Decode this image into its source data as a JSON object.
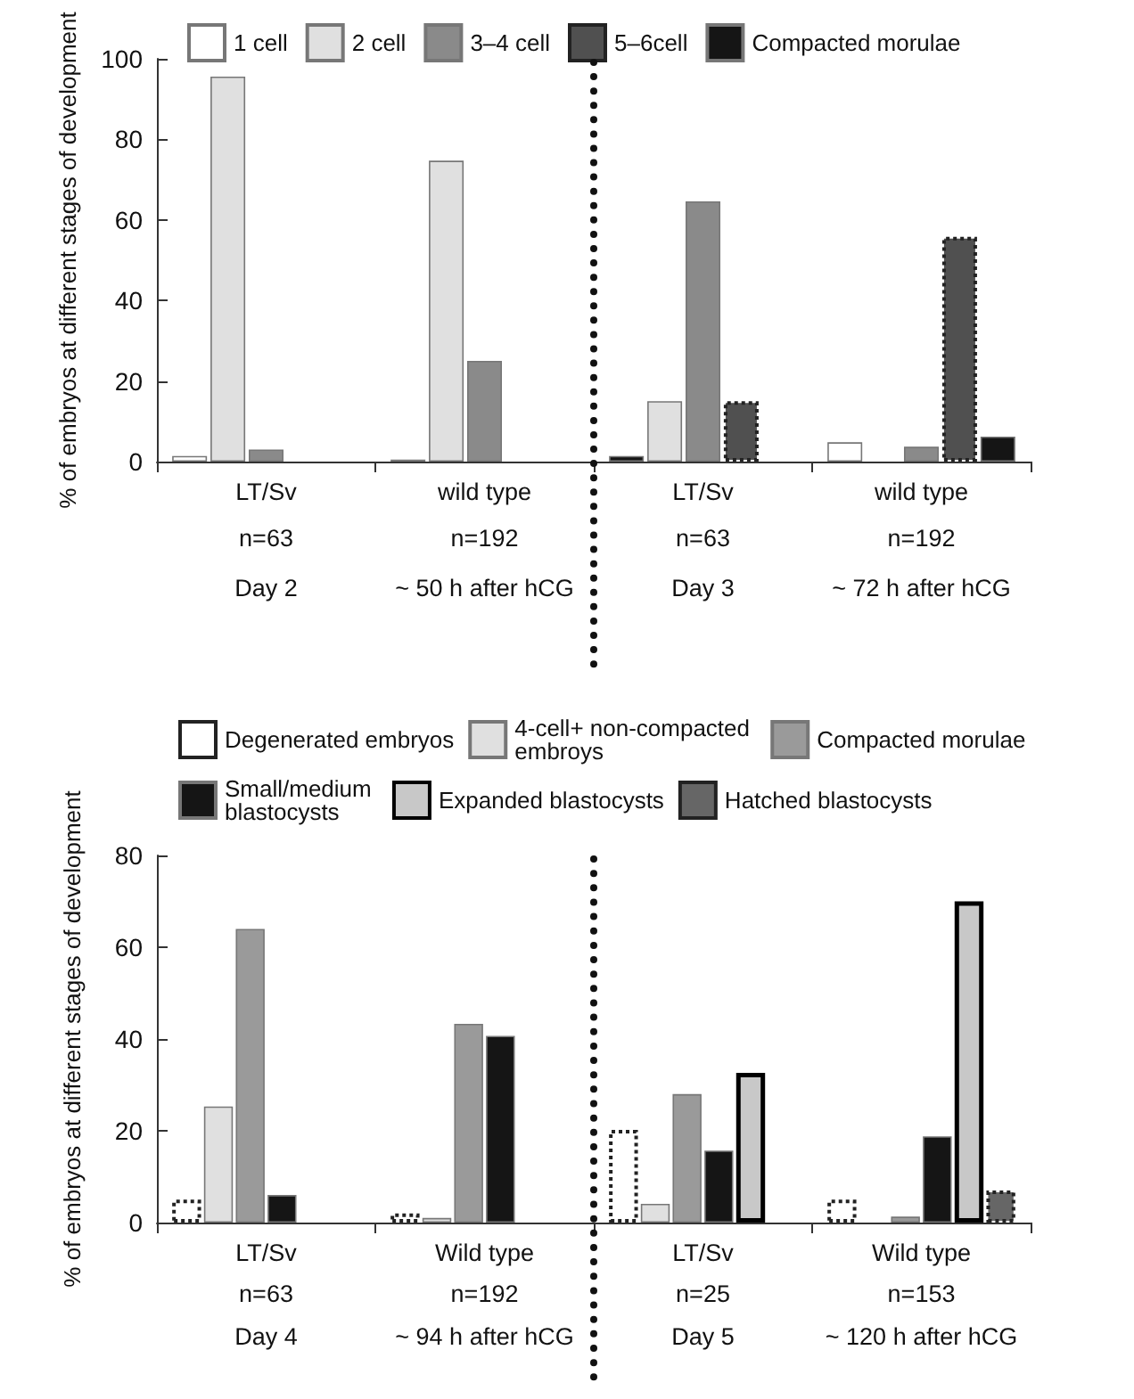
{
  "chart_data": [
    {
      "type": "bar",
      "ylabel": "% of embryos at different stages of development",
      "categories": [
        "LT/Sv",
        "wild type",
        "LT/Sv",
        "wild type"
      ],
      "ylim": [
        0,
        100
      ],
      "yticks": [
        0,
        20,
        40,
        60,
        80,
        100
      ],
      "legend": "top",
      "grid": false,
      "series": [
        {
          "name": "1 cell",
          "color": "#ffffff",
          "colors": [
            "#ffffff",
            "#ffffff",
            "#151515",
            "#ffffff"
          ],
          "values": [
            1.4,
            0.5,
            1.4,
            4.8
          ]
        },
        {
          "name": "2 cell",
          "color": "#e0e0e0",
          "values": [
            95.6,
            74.7,
            15,
            null
          ]
        },
        {
          "name": "3–4 cell",
          "color": "#8a8a8a",
          "values": [
            3,
            25,
            64.6,
            3.7
          ]
        },
        {
          "name": "5–6cell",
          "color": "#505050",
          "line_style": "dotted",
          "values": [
            null,
            null,
            15,
            55.8
          ]
        },
        {
          "name": "Compacted morulae",
          "color": "#151515",
          "values": [
            null,
            null,
            null,
            6.2
          ]
        }
      ],
      "annotations": [
        "n=63",
        "n=192",
        "n=63",
        "n=192",
        "Day 2",
        "~ 50 h after hCG",
        "Day 3",
        "~ 72 h after hCG"
      ]
    },
    {
      "type": "bar",
      "ylabel": "% of embryos at different stages of development",
      "categories": [
        "LT/Sv",
        "Wild type",
        "LT/Sv",
        "Wild type"
      ],
      "ylim": [
        0,
        80
      ],
      "yticks": [
        0,
        20,
        40,
        60,
        80
      ],
      "legend": "top",
      "grid": false,
      "series": [
        {
          "name": "Degenerated embryos",
          "color": "#ffffff",
          "line_style": "dotted",
          "values": [
            5,
            2,
            20.2,
            5
          ]
        },
        {
          "name": "4-cell+ non-compacted embroys",
          "color": "#e0e0e0",
          "values": [
            25.3,
            1,
            4.1,
            null
          ]
        },
        {
          "name": "Compacted morulae",
          "color": "#9a9a9a",
          "values": [
            64,
            43.3,
            28,
            1.3
          ]
        },
        {
          "name": "Small/medium blastocysts",
          "color": "#151515",
          "values": [
            6,
            40.7,
            15.7,
            18.8
          ]
        },
        {
          "name": "Expanded blastocysts",
          "color": "#c8c8c8",
          "line_style": "solid",
          "values": [
            null,
            null,
            32.6,
            70
          ]
        },
        {
          "name": "Hatched blastocysts",
          "color": "#666666",
          "line_style": "dotted",
          "values": [
            null,
            null,
            null,
            7
          ]
        }
      ],
      "annotations": [
        "n=63",
        "n=192",
        "n=25",
        "n=153",
        "Day 4",
        "~ 94 h after hCG",
        "Day 5",
        "~ 120 h after hCG"
      ]
    }
  ]
}
